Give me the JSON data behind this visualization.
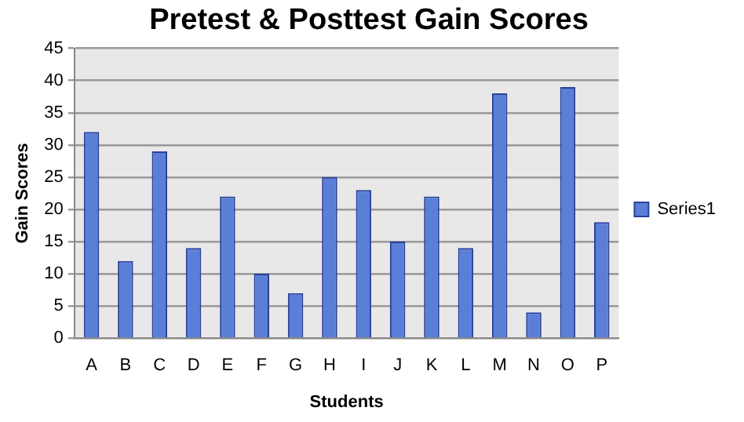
{
  "chart_data": {
    "type": "bar",
    "title": "Pretest & Posttest Gain Scores",
    "xlabel": "Students",
    "ylabel": "Gain Scores",
    "categories": [
      "A",
      "B",
      "C",
      "D",
      "E",
      "F",
      "G",
      "H",
      "I",
      "J",
      "K",
      "L",
      "M",
      "N",
      "O",
      "P"
    ],
    "series": [
      {
        "name": "Series1",
        "color": "#5b7fd6",
        "values": [
          32,
          12,
          29,
          14,
          22,
          10,
          7,
          25,
          23,
          15,
          22,
          14,
          38,
          4,
          39,
          18
        ]
      }
    ],
    "ylim": [
      0,
      45
    ],
    "yticks": [
      0,
      5,
      10,
      15,
      20,
      25,
      30,
      35,
      40,
      45
    ],
    "grid": "y",
    "legend": "right"
  }
}
